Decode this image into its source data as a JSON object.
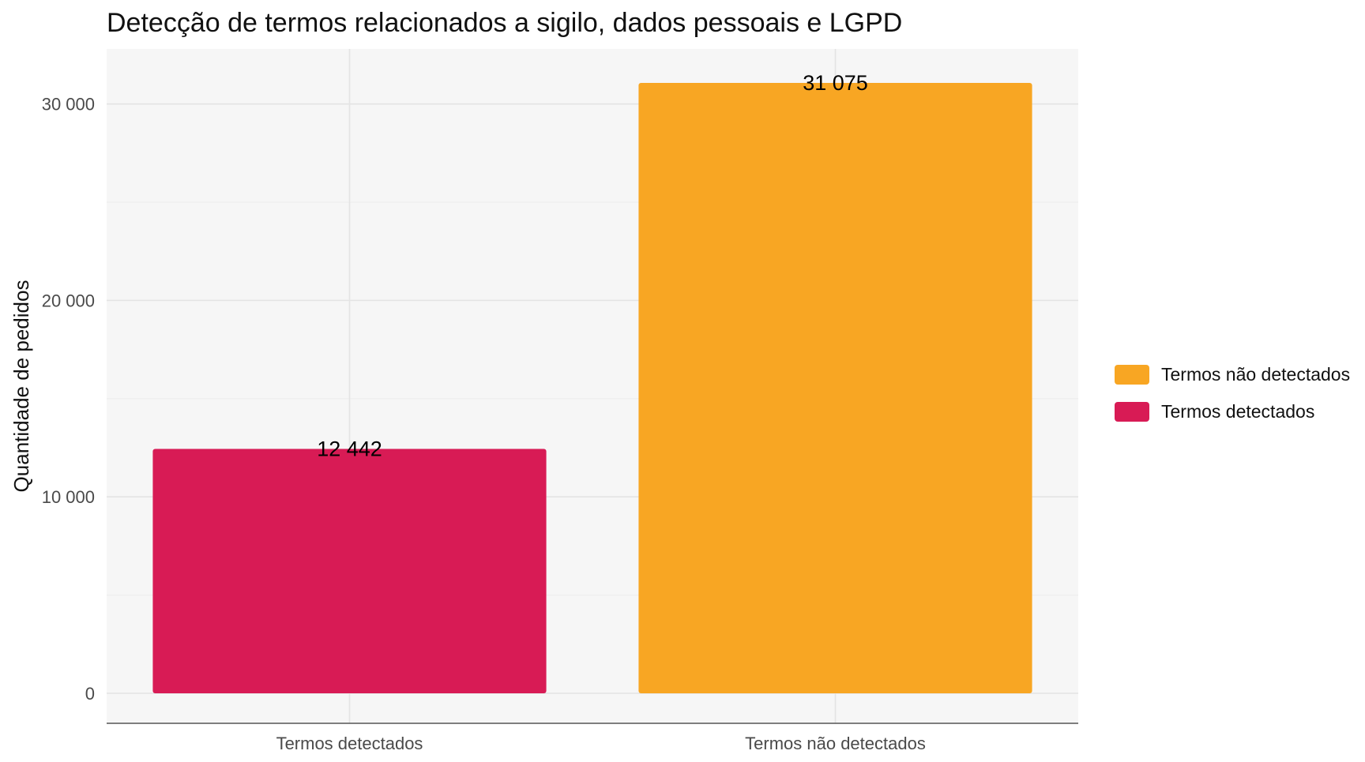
{
  "chart_data": {
    "type": "bar",
    "title": "Detecção de termos relacionados a sigilo, dados pessoais e LGPD",
    "xlabel": "",
    "ylabel": "Quantidade de pedidos",
    "categories": [
      "Termos detectados",
      "Termos não detectados"
    ],
    "values": [
      12442,
      31075
    ],
    "value_labels": [
      "12 442",
      "31 075"
    ],
    "colors": [
      "#D81B55",
      "#F8A623"
    ],
    "ylim": [
      0,
      32600
    ],
    "yticks": [
      0,
      10000,
      20000,
      30000
    ],
    "ytick_labels": [
      "0",
      "10 000",
      "20 000",
      "30 000"
    ],
    "grid": true,
    "legend": {
      "placement": "right",
      "entries": [
        {
          "label": "Termos não detectados",
          "color": "#F8A623"
        },
        {
          "label": "Termos detectados",
          "color": "#D81B55"
        }
      ]
    }
  }
}
